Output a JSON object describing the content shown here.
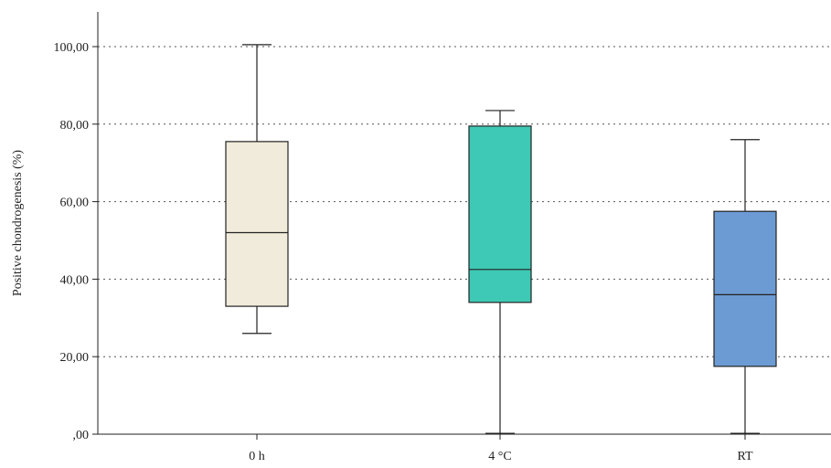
{
  "chart_data": {
    "type": "box",
    "title": "",
    "xlabel": "",
    "ylabel": "Positive chondrogenesis (%)",
    "ylim": [
      0,
      110
    ],
    "y_ticks": [
      {
        "value": 0,
        "label": ",00"
      },
      {
        "value": 20,
        "label": "20,00"
      },
      {
        "value": 40,
        "label": "40,00"
      },
      {
        "value": 60,
        "label": "60,00"
      },
      {
        "value": 80,
        "label": "80,00"
      },
      {
        "value": 100,
        "label": "100,00"
      }
    ],
    "grid": "horizontal dotted",
    "categories": [
      "0 h",
      "4 °C",
      "RT"
    ],
    "boxes": [
      {
        "category": "0 h",
        "min": 26,
        "q1": 33,
        "median": 52,
        "q3": 75.5,
        "max": 100.5,
        "color": "#f0ebda"
      },
      {
        "category": "4 °C",
        "min": 0.2,
        "q1": 34,
        "median": 42.5,
        "q3": 79.5,
        "max": 83.5,
        "color": "#3ec9b6"
      },
      {
        "category": "RT",
        "min": 0.2,
        "q1": 17.5,
        "median": 36,
        "q3": 57.5,
        "max": 76,
        "color": "#6c9bd3"
      }
    ]
  }
}
